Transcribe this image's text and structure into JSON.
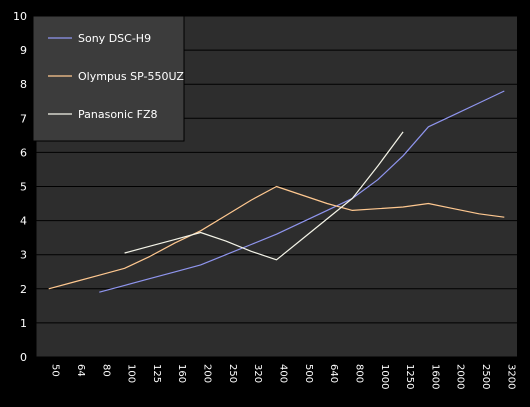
{
  "chart_data": {
    "type": "line",
    "title": "",
    "xlabel": "",
    "ylabel": "",
    "categories": [
      "50",
      "64",
      "80",
      "100",
      "125",
      "160",
      "200",
      "250",
      "320",
      "400",
      "500",
      "640",
      "800",
      "1000",
      "1250",
      "1600",
      "2000",
      "2500",
      "3200"
    ],
    "ylim": [
      0,
      10
    ],
    "yticks": [
      0,
      1,
      2,
      3,
      4,
      5,
      6,
      7,
      8,
      9,
      10
    ],
    "grid": true,
    "legend_position": "top-left",
    "series": [
      {
        "name": "Sony DSC-H9",
        "color": "#8f95ee",
        "values": [
          null,
          null,
          1.9,
          2.1,
          2.3,
          2.5,
          2.7,
          3.0,
          3.3,
          3.6,
          3.95,
          4.3,
          4.65,
          5.2,
          5.9,
          6.75,
          7.1,
          7.45,
          7.8
        ]
      },
      {
        "name": "Olympus SP-550UZ",
        "color": "#ffc890",
        "values": [
          2.0,
          2.2,
          2.4,
          2.6,
          2.95,
          3.35,
          3.7,
          4.15,
          4.6,
          5.0,
          4.75,
          4.5,
          4.3,
          4.35,
          4.4,
          4.5,
          4.35,
          4.2,
          4.1
        ]
      },
      {
        "name": "Panasonic FZ8",
        "color": "#f4f4e8",
        "values": [
          null,
          null,
          null,
          3.05,
          3.25,
          3.45,
          3.65,
          3.4,
          3.1,
          2.85,
          3.45,
          4.05,
          4.65,
          5.6,
          6.6,
          null,
          null,
          null,
          null
        ]
      }
    ]
  }
}
